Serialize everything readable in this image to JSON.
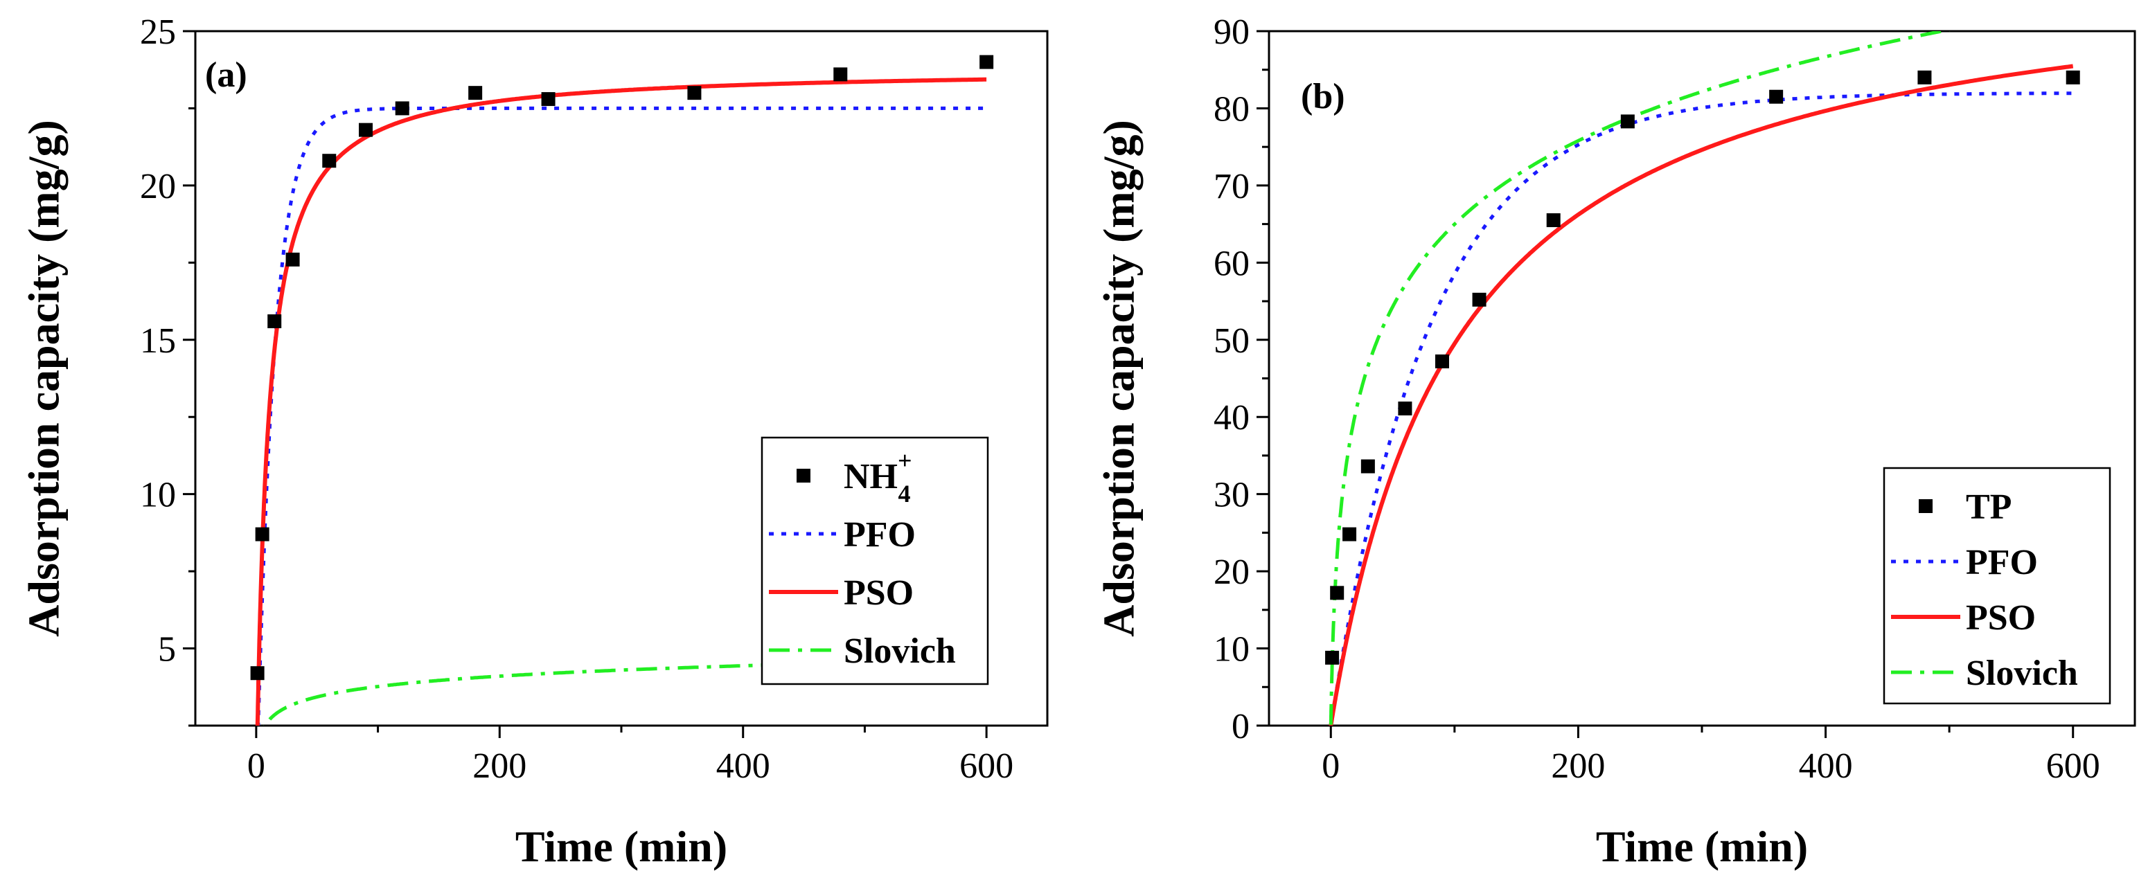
{
  "chart_data": [
    {
      "type": "scatter",
      "panel": "(a)",
      "xlabel": "Time (min)",
      "ylabel": "Adsorption capacity (mg/g)",
      "xlim": [
        -50,
        650
      ],
      "ylim": [
        2.5,
        25
      ],
      "xticks": [
        0,
        200,
        400,
        600
      ],
      "xtick_labels": [
        "0",
        "200",
        "400",
        "600"
      ],
      "yticks": [
        5,
        10,
        15,
        20,
        25
      ],
      "ytick_labels": [
        "5",
        "10",
        "15",
        "20",
        "25"
      ],
      "legend_position": "bottom-right",
      "scatter": {
        "name": "NH4+",
        "label": "NH",
        "label_sub": "4",
        "label_sup": "+",
        "x": [
          1,
          5,
          15,
          30,
          60,
          90,
          120,
          180,
          240,
          360,
          480,
          600
        ],
        "y": [
          4.2,
          8.7,
          15.6,
          17.6,
          20.8,
          21.8,
          22.5,
          23.0,
          22.8,
          23.0,
          23.6,
          24.0
        ]
      },
      "models": [
        {
          "name": "PFO",
          "kind": "pfo",
          "qe": 22.5,
          "k": 0.07,
          "color": "#1a1aff"
        },
        {
          "name": "PSO",
          "kind": "pso",
          "qe": 23.8,
          "k": 0.0045,
          "color": "#ff1a1a"
        },
        {
          "name": "Slovich",
          "kind": "elovich",
          "a": 11.35,
          "b": 2.06,
          "color": "#22ee22"
        }
      ]
    },
    {
      "type": "scatter",
      "panel": "(b)",
      "xlabel": "Time (min)",
      "ylabel": "Adsorption capacity (mg/g)",
      "xlim": [
        -50,
        650
      ],
      "ylim": [
        0,
        90
      ],
      "xticks": [
        0,
        200,
        400,
        600
      ],
      "xtick_labels": [
        "0",
        "200",
        "400",
        "600"
      ],
      "yticks": [
        0,
        10,
        20,
        30,
        40,
        50,
        60,
        70,
        80,
        90
      ],
      "ytick_labels": [
        "0",
        "10",
        "20",
        "30",
        "40",
        "50",
        "60",
        "70",
        "80",
        "90"
      ],
      "legend_position": "bottom-right",
      "scatter": {
        "name": "TP",
        "label": "TP",
        "x": [
          1,
          5,
          15,
          30,
          60,
          90,
          120,
          180,
          240,
          360,
          480,
          600
        ],
        "y": [
          8.8,
          17.2,
          24.8,
          33.6,
          41.1,
          47.2,
          55.2,
          65.5,
          78.3,
          81.5,
          84.0,
          84.0
        ]
      },
      "models": [
        {
          "name": "PFO",
          "kind": "pfo",
          "qe": 82.0,
          "k": 0.0125,
          "color": "#1a1aff"
        },
        {
          "name": "PSO",
          "kind": "pso",
          "qe": 100.0,
          "k": 9.8e-05,
          "color": "#ff1a1a"
        },
        {
          "name": "Slovich",
          "kind": "elovich",
          "a": 9.5,
          "b": 0.0633,
          "color": "#22ee22"
        }
      ]
    }
  ]
}
